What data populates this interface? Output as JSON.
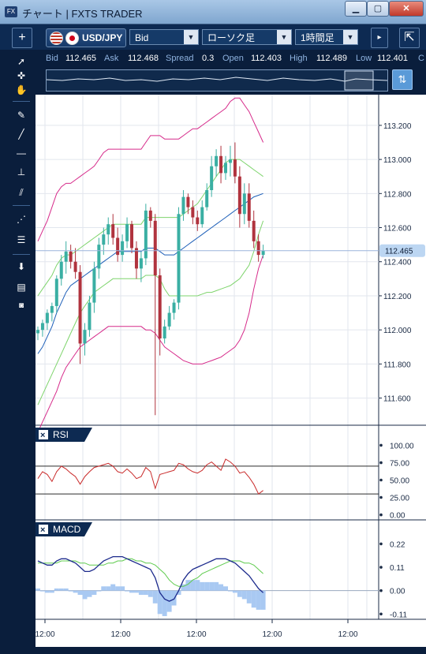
{
  "window": {
    "title": "チャート | FXTS TRADER",
    "app_icon": "FX",
    "controls": [
      "minimize",
      "maximize",
      "close"
    ]
  },
  "toolbar": {
    "add_label": "+",
    "symbol": "USD/JPY",
    "price_type": "Bid",
    "chart_type": "ローソク足",
    "timeframe": "1時間足",
    "collapse_icon": "collapse-icon",
    "popout_icon": "popout-arrow-icon"
  },
  "quotes": {
    "bid_label": "Bid",
    "bid": "112.465",
    "ask_label": "Ask",
    "ask": "112.468",
    "spread_label": "Spread",
    "spread": "0.3",
    "open_label": "Open",
    "open": "112.403",
    "high_label": "High",
    "high": "112.489",
    "low_label": "Low",
    "low": "112.401",
    "close_label": "C"
  },
  "left_tools": [
    "cursor-icon",
    "crosshair-icon",
    "hand-icon",
    "marker-icon",
    "trendline-icon",
    "horizontal-line-icon",
    "vertical-line-icon",
    "channel-icon",
    "fibonacci-icon",
    "lines-list-icon",
    "download-icon",
    "list-icon",
    "camera-icon"
  ],
  "colors": {
    "panel_bg": "#0a1e3c",
    "up": "#3aafa3",
    "down": "#b0333e",
    "bollinger_outer": "#d62a8a",
    "bollinger_inner": "#7ed46c",
    "ma": "#1d5fb8",
    "rsi": "#c92a2a",
    "macd": "#1c2a8c",
    "signal": "#5ecb4d",
    "histogram": "#a9c9f2",
    "current_price_bg": "#bcd6f2"
  },
  "chart_data": {
    "type": "candlestick",
    "symbol": "USD/JPY",
    "timeframe": "1時間足",
    "current_price": "112.465",
    "price_axis_labels": [
      "113.200",
      "113.000",
      "112.800",
      "112.600",
      "112.400",
      "112.200",
      "112.000",
      "111.800",
      "111.600"
    ],
    "ylim": [
      111.45,
      113.38
    ],
    "x_tick_labels": [
      "12:00",
      "12:00",
      "12:00",
      "12:00",
      "12:00"
    ],
    "candles": [
      [
        111.98,
        112.02,
        111.94,
        112.0
      ],
      [
        112.0,
        112.06,
        111.96,
        112.04
      ],
      [
        112.04,
        112.12,
        112.0,
        112.1
      ],
      [
        112.1,
        112.16,
        112.05,
        112.14
      ],
      [
        112.14,
        112.32,
        112.1,
        112.3
      ],
      [
        112.3,
        112.44,
        112.26,
        112.4
      ],
      [
        112.4,
        112.52,
        112.33,
        112.46
      ],
      [
        112.46,
        112.5,
        112.36,
        112.4
      ],
      [
        112.4,
        112.48,
        112.3,
        112.34
      ],
      [
        112.34,
        112.38,
        111.8,
        111.92
      ],
      [
        111.92,
        112.04,
        111.85,
        112.0
      ],
      [
        112.0,
        112.2,
        111.96,
        112.16
      ],
      [
        112.16,
        112.4,
        112.1,
        112.36
      ],
      [
        112.36,
        112.54,
        112.3,
        112.5
      ],
      [
        112.5,
        112.6,
        112.44,
        112.56
      ],
      [
        112.56,
        112.66,
        112.5,
        112.62
      ],
      [
        112.62,
        112.68,
        112.5,
        112.54
      ],
      [
        112.54,
        112.6,
        112.4,
        112.44
      ],
      [
        112.44,
        112.56,
        112.4,
        112.52
      ],
      [
        112.52,
        112.66,
        112.48,
        112.62
      ],
      [
        112.62,
        112.64,
        112.45,
        112.48
      ],
      [
        112.48,
        112.52,
        112.3,
        112.36
      ],
      [
        112.36,
        112.46,
        112.28,
        112.42
      ],
      [
        112.42,
        112.74,
        112.38,
        112.7
      ],
      [
        112.7,
        112.72,
        112.6,
        112.64
      ],
      [
        112.64,
        112.68,
        111.5,
        112.32
      ],
      [
        112.32,
        112.36,
        111.85,
        111.95
      ],
      [
        111.95,
        112.06,
        111.92,
        112.02
      ],
      [
        112.02,
        112.14,
        112.0,
        112.1
      ],
      [
        112.1,
        112.18,
        112.06,
        112.16
      ],
      [
        112.16,
        112.72,
        112.12,
        112.68
      ],
      [
        112.68,
        112.82,
        112.64,
        112.78
      ],
      [
        112.78,
        112.8,
        112.68,
        112.72
      ],
      [
        112.72,
        112.76,
        112.62,
        112.66
      ],
      [
        112.66,
        112.7,
        112.58,
        112.62
      ],
      [
        112.62,
        112.76,
        112.6,
        112.72
      ],
      [
        112.72,
        112.86,
        112.7,
        112.82
      ],
      [
        112.82,
        113.02,
        112.78,
        112.96
      ],
      [
        112.96,
        113.06,
        112.9,
        113.02
      ],
      [
        113.02,
        113.08,
        112.86,
        112.92
      ],
      [
        112.92,
        113.02,
        112.88,
        112.98
      ],
      [
        112.98,
        113.08,
        112.9,
        113.0
      ],
      [
        113.0,
        113.1,
        112.86,
        112.9
      ],
      [
        112.9,
        112.96,
        112.6,
        112.68
      ],
      [
        112.68,
        112.86,
        112.62,
        112.8
      ],
      [
        112.8,
        112.86,
        112.6,
        112.64
      ],
      [
        112.64,
        112.7,
        112.48,
        112.52
      ],
      [
        112.52,
        112.56,
        112.4,
        112.44
      ],
      [
        112.44,
        112.5,
        112.42,
        112.465
      ]
    ],
    "bollinger": {
      "upper": [
        112.52,
        112.58,
        112.64,
        112.72,
        112.8,
        112.84,
        112.86,
        112.86,
        112.88,
        112.9,
        112.92,
        112.94,
        112.96,
        113.0,
        113.04,
        113.06,
        113.06,
        113.06,
        113.06,
        113.06,
        113.06,
        113.06,
        113.06,
        113.1,
        113.14,
        113.14,
        113.14,
        113.12,
        113.12,
        113.12,
        113.12,
        113.14,
        113.16,
        113.18,
        113.18,
        113.2,
        113.22,
        113.24,
        113.26,
        113.28,
        113.3,
        113.34,
        113.36,
        113.36,
        113.32,
        113.28,
        113.22,
        113.16,
        113.1
      ],
      "mid_upper": [
        112.2,
        112.24,
        112.28,
        112.32,
        112.38,
        112.42,
        112.44,
        112.44,
        112.46,
        112.48,
        112.5,
        112.52,
        112.54,
        112.56,
        112.58,
        112.6,
        112.62,
        112.62,
        112.62,
        112.62,
        112.62,
        112.62,
        112.62,
        112.66,
        112.66,
        112.66,
        112.66,
        112.66,
        112.66,
        112.66,
        112.66,
        112.68,
        112.7,
        112.72,
        112.74,
        112.78,
        112.82,
        112.86,
        112.9,
        112.94,
        112.98,
        113.0,
        113.0,
        113.0,
        112.98,
        112.96,
        112.94,
        112.92,
        112.9
      ],
      "mid": [
        111.86,
        111.9,
        111.96,
        112.02,
        112.1,
        112.16,
        112.22,
        112.26,
        112.28,
        112.3,
        112.32,
        112.34,
        112.36,
        112.38,
        112.4,
        112.42,
        112.44,
        112.46,
        112.46,
        112.46,
        112.46,
        112.46,
        112.46,
        112.48,
        112.48,
        112.48,
        112.46,
        112.44,
        112.44,
        112.44,
        112.46,
        112.48,
        112.5,
        112.52,
        112.54,
        112.56,
        112.58,
        112.6,
        112.62,
        112.64,
        112.66,
        112.68,
        112.7,
        112.72,
        112.74,
        112.76,
        112.78,
        112.79,
        112.8
      ],
      "mid_lower": [
        111.56,
        111.62,
        111.68,
        111.74,
        111.8,
        111.86,
        111.92,
        111.98,
        112.04,
        112.1,
        112.14,
        112.18,
        112.22,
        112.24,
        112.26,
        112.28,
        112.3,
        112.3,
        112.3,
        112.3,
        112.3,
        112.3,
        112.3,
        112.32,
        112.32,
        112.32,
        112.3,
        112.24,
        112.2,
        112.2,
        112.2,
        112.2,
        112.2,
        112.2,
        112.2,
        112.21,
        112.22,
        112.22,
        112.23,
        112.24,
        112.25,
        112.26,
        112.28,
        112.3,
        112.34,
        112.38,
        112.46,
        112.56,
        112.64
      ],
      "lower": [
        111.4,
        111.46,
        111.52,
        111.58,
        111.64,
        111.72,
        111.78,
        111.82,
        111.86,
        111.9,
        111.92,
        111.94,
        111.96,
        111.98,
        112.0,
        112.02,
        112.02,
        112.02,
        112.02,
        112.02,
        112.02,
        112.02,
        112.02,
        112.0,
        112.0,
        111.98,
        111.94,
        111.9,
        111.88,
        111.86,
        111.84,
        111.82,
        111.81,
        111.8,
        111.8,
        111.8,
        111.81,
        111.82,
        111.83,
        111.84,
        111.86,
        111.88,
        111.9,
        111.94,
        112.0,
        112.1,
        112.24,
        112.36,
        112.44
      ]
    },
    "rsi": {
      "label": "RSI",
      "axis_labels": [
        "100.00",
        "75.00",
        "50.00",
        "25.00",
        "0.00"
      ],
      "ylim": [
        -5,
        105
      ],
      "levels": [
        70,
        30
      ],
      "values": [
        52,
        62,
        58,
        48,
        62,
        70,
        66,
        60,
        55,
        44,
        55,
        62,
        68,
        70,
        72,
        74,
        70,
        62,
        60,
        66,
        60,
        52,
        55,
        68,
        62,
        38,
        58,
        60,
        62,
        64,
        74,
        72,
        66,
        62,
        60,
        64,
        72,
        76,
        70,
        64,
        80,
        76,
        70,
        60,
        62,
        54,
        44,
        30,
        35
      ]
    },
    "macd": {
      "label": "MACD",
      "axis_labels": [
        "0.22",
        "0.11",
        "0.00",
        "-0.11"
      ],
      "ylim": [
        -0.135,
        0.255
      ],
      "macd_line": [
        0.14,
        0.13,
        0.12,
        0.12,
        0.14,
        0.15,
        0.15,
        0.14,
        0.13,
        0.11,
        0.09,
        0.09,
        0.1,
        0.12,
        0.14,
        0.15,
        0.16,
        0.16,
        0.16,
        0.15,
        0.14,
        0.13,
        0.12,
        0.11,
        0.1,
        0.06,
        -0.01,
        -0.04,
        -0.05,
        -0.04,
        0.0,
        0.05,
        0.08,
        0.1,
        0.11,
        0.12,
        0.13,
        0.14,
        0.15,
        0.15,
        0.15,
        0.14,
        0.13,
        0.11,
        0.09,
        0.07,
        0.04,
        0.01,
        -0.01
      ],
      "signal_line": [
        0.13,
        0.13,
        0.13,
        0.13,
        0.13,
        0.14,
        0.14,
        0.14,
        0.14,
        0.13,
        0.13,
        0.12,
        0.12,
        0.12,
        0.12,
        0.13,
        0.13,
        0.14,
        0.14,
        0.15,
        0.15,
        0.14,
        0.14,
        0.13,
        0.13,
        0.12,
        0.1,
        0.08,
        0.05,
        0.03,
        0.02,
        0.02,
        0.03,
        0.05,
        0.06,
        0.08,
        0.09,
        0.1,
        0.11,
        0.12,
        0.13,
        0.14,
        0.14,
        0.14,
        0.13,
        0.13,
        0.12,
        0.1,
        0.08
      ],
      "histogram": [
        0.01,
        0.0,
        -0.01,
        -0.01,
        0.01,
        0.01,
        0.01,
        0.0,
        -0.01,
        -0.02,
        -0.04,
        -0.03,
        -0.02,
        0.0,
        0.02,
        0.02,
        0.03,
        0.02,
        0.02,
        0.0,
        -0.01,
        -0.01,
        -0.02,
        -0.02,
        -0.03,
        -0.06,
        -0.11,
        -0.12,
        -0.1,
        -0.07,
        -0.02,
        0.03,
        0.05,
        0.05,
        0.05,
        0.04,
        0.04,
        0.04,
        0.04,
        0.03,
        0.02,
        0.0,
        -0.01,
        -0.03,
        -0.04,
        -0.06,
        -0.08,
        -0.09,
        -0.09
      ]
    }
  }
}
